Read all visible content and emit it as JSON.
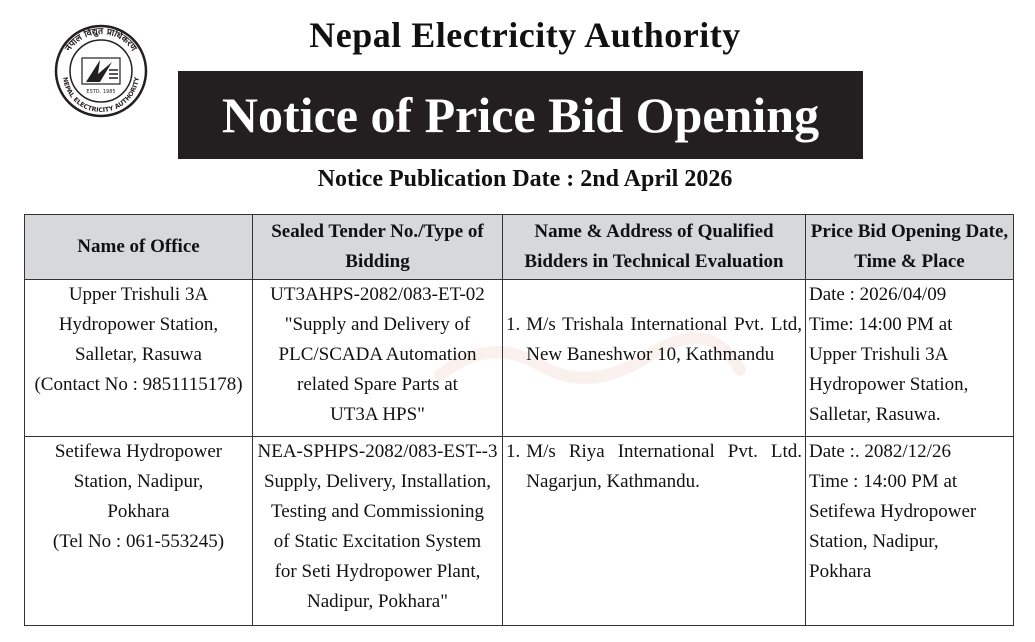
{
  "header": {
    "org_name": "Nepal Electricity Authority",
    "notice_title": "Notice of Price Bid Opening",
    "publication_date": "Notice Publication Date : 2nd April 2026"
  },
  "logo": {
    "top_text": "नेपाल विद्युत प्राधिकरण",
    "bottom_text": "NEPAL ELECTRICITY AUTHORITY",
    "est": "ESTD. 1985",
    "colors": {
      "ink": "#231f20"
    }
  },
  "table": {
    "headers": [
      "Name of  Office",
      "Sealed Tender No./Type of Bidding",
      "Name & Address of Qualified Bidders in Technical Evaluation",
      "Price Bid Opening Date, Time & Place"
    ],
    "rows": [
      {
        "office": [
          "Upper Trishuli 3A",
          "Hydropower Station,",
          "Salletar, Rasuwa",
          "(Contact No : 9851115178)"
        ],
        "tender": [
          "UT3AHPS-2082/083-ET-02",
          "\"Supply and Delivery of",
          "PLC/SCADA Automation",
          "related Spare Parts at",
          "UT3A HPS\""
        ],
        "bidder_no": "1.",
        "bidder": "M/s Trishala International Pvt. Ltd, New Baneshwor 10, Kathmandu",
        "opening": [
          "Date : 2026/04/09",
          "Time: 14:00 PM at",
          "Upper Trishuli 3A",
          "Hydropower Station,",
          "Salletar, Rasuwa."
        ]
      },
      {
        "office": [
          "Setifewa Hydropower",
          "Station, Nadipur,",
          "Pokhara",
          "(Tel No : 061-553245)"
        ],
        "tender": [
          "NEA-SPHPS-2082/083-EST--3",
          "Supply, Delivery, Installation,",
          "Testing and Commissioning",
          "of Static Excitation System",
          "for Seti Hydropower Plant,",
          "Nadipur, Pokhara\""
        ],
        "bidder_no": "1.",
        "bidder": "M/s Riya International Pvt. Ltd. Nagarjun, Kathmandu.",
        "opening": [
          "Date :. 2082/12/26",
          "Time : 14:00 PM at",
          "Setifewa Hydropower",
          "Station, Nadipur,",
          "Pokhara"
        ]
      }
    ]
  },
  "colors": {
    "banner_bg": "#231f20",
    "header_bg": "#d7d8d9",
    "watermark": "#e8b4a8"
  }
}
